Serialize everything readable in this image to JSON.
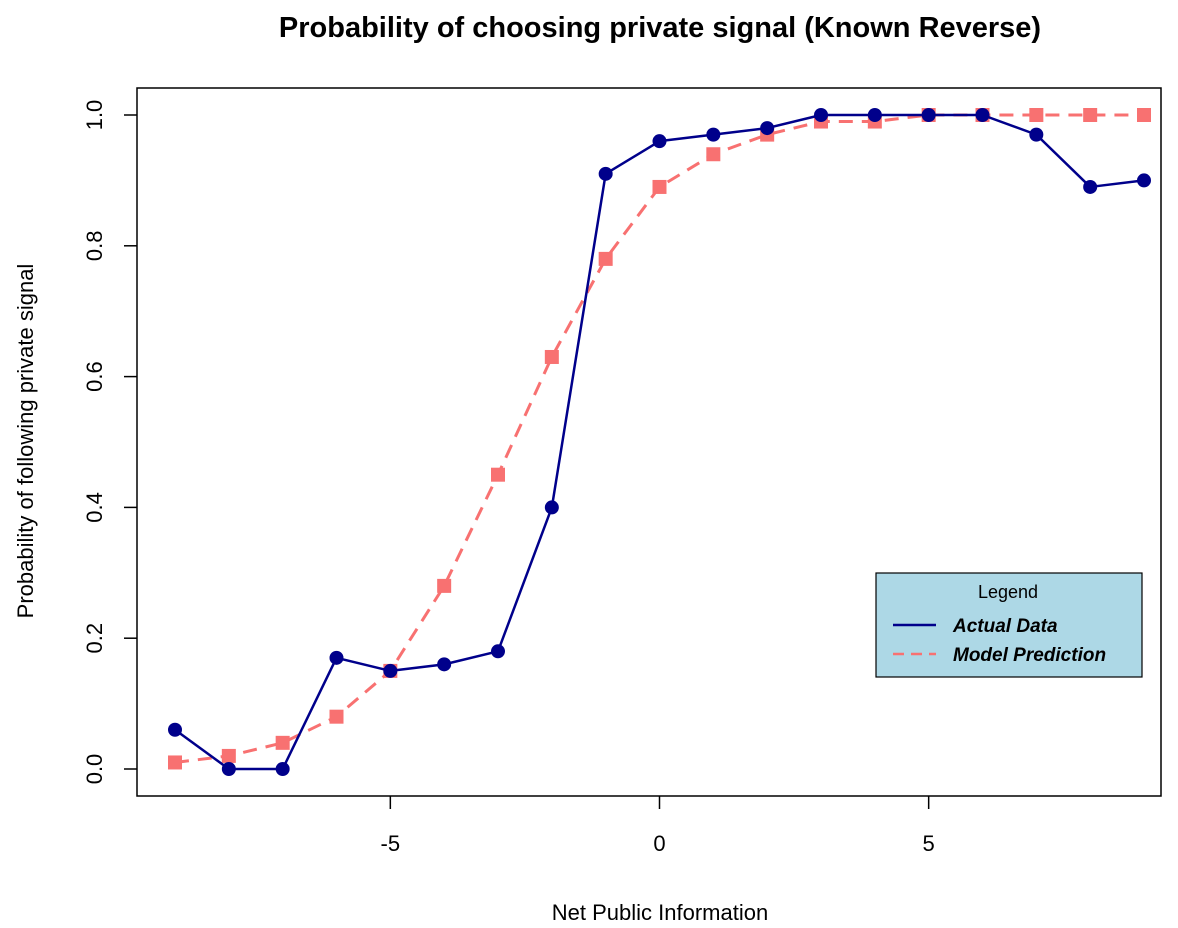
{
  "chart_data": {
    "type": "line",
    "title": "Probability of choosing private signal (Known Reverse)",
    "xlabel": "Net Public Information",
    "ylabel": "Probability of following private signal",
    "xlim": [
      -9,
      9
    ],
    "ylim": [
      0,
      1
    ],
    "x_ticks": [
      "-5",
      "0",
      "5"
    ],
    "y_ticks": [
      "0.0",
      "0.2",
      "0.4",
      "0.6",
      "0.8",
      "1.0"
    ],
    "x": [
      -9,
      -8,
      -7,
      -6,
      -5,
      -4,
      -3,
      -2,
      -1,
      0,
      1,
      2,
      3,
      4,
      5,
      6,
      7,
      8,
      9
    ],
    "series": [
      {
        "name": "Actual Data",
        "color": "#00008B",
        "line": "solid",
        "marker": "circle",
        "values": [
          0.06,
          0.0,
          0.0,
          0.17,
          0.15,
          0.16,
          0.18,
          0.4,
          0.91,
          0.96,
          0.97,
          0.98,
          1.0,
          1.0,
          1.0,
          1.0,
          0.97,
          0.89,
          0.9
        ]
      },
      {
        "name": "Model Prediction",
        "color": "#F87171",
        "line": "dashed",
        "marker": "square",
        "values": [
          0.01,
          0.02,
          0.04,
          0.08,
          0.15,
          0.28,
          0.45,
          0.63,
          0.78,
          0.89,
          0.94,
          0.97,
          0.99,
          0.99,
          1.0,
          1.0,
          1.0,
          1.0,
          1.0
        ]
      }
    ],
    "legend": {
      "title": "Legend",
      "position": "right",
      "background": "#ADD8E6"
    },
    "grid": false
  }
}
